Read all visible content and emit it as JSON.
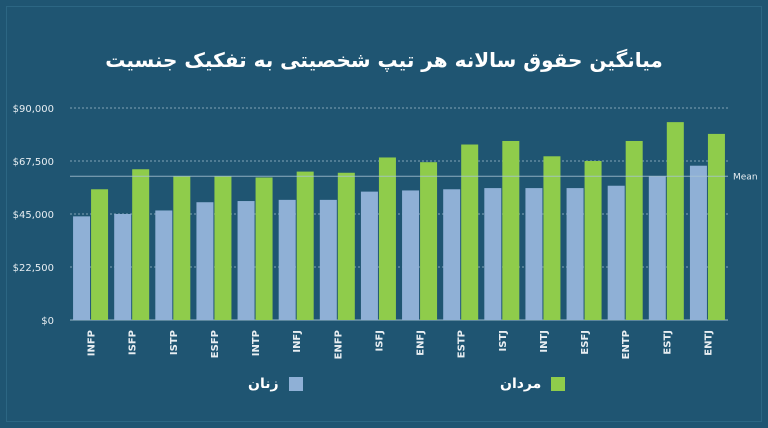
{
  "colors": {
    "background": "#1f5572",
    "women": "#8fb0d6",
    "men": "#8fcc4b",
    "grid": "#a9c4d4"
  },
  "chart_data": {
    "type": "bar",
    "title": "میانگین حقوق سالانه هر تیپ شخصیتی به تفکیک جنسیت",
    "categories": [
      "INFP",
      "ISFP",
      "ISTP",
      "ESFP",
      "INTP",
      "INFJ",
      "ENFP",
      "ISFJ",
      "ENFJ",
      "ESTP",
      "ISTJ",
      "INTJ",
      "ESFJ",
      "ENTP",
      "ESTJ",
      "ENTJ"
    ],
    "series": [
      {
        "name": "زنان",
        "color": "#8fb0d6",
        "values": [
          44000,
          45000,
          46500,
          50000,
          50500,
          51000,
          51000,
          54500,
          55000,
          55500,
          56000,
          56000,
          56000,
          57000,
          61000,
          65500
        ]
      },
      {
        "name": "مردان",
        "color": "#8fcc4b",
        "values": [
          55500,
          64000,
          61000,
          61000,
          60500,
          63000,
          62500,
          69000,
          67000,
          74500,
          76000,
          69500,
          67500,
          76000,
          84000,
          79000
        ]
      }
    ],
    "y_ticks": [
      "$0",
      "$22,500",
      "$45,000",
      "$67,500",
      "$90,000"
    ],
    "ylim": [
      0,
      90000
    ],
    "mean": {
      "label": "Mean",
      "value": 61000
    },
    "grid": true,
    "legend_position": "bottom"
  }
}
